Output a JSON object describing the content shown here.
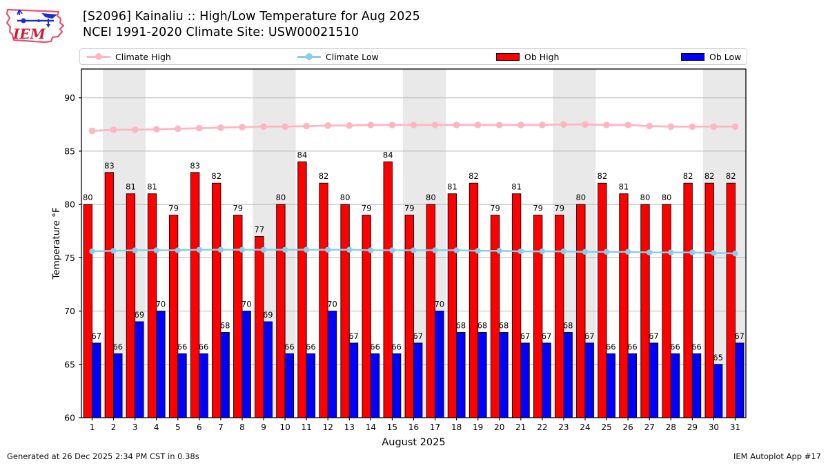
{
  "header": {
    "logo_text": "IEM",
    "title_line1": "[S2096] Kainaliu :: High/Low Temperature for Aug 2025",
    "title_line2": "NCEI 1991-2020 Climate Site: USW00021510"
  },
  "legend": {
    "items": [
      {
        "label": "Climate High",
        "swatch": "line-marker",
        "color": "#ffb6c1"
      },
      {
        "label": "Climate Low",
        "swatch": "line-marker",
        "color": "#87ceeb"
      },
      {
        "label": "Ob High",
        "swatch": "rect",
        "color": "#ff0000"
      },
      {
        "label": "Ob Low",
        "swatch": "rect",
        "color": "#0000ff"
      }
    ]
  },
  "footer": {
    "left": "Generated at 26 Dec 2025 2:34 PM CST in 0.38s",
    "right": "IEM Autoplot App #17"
  },
  "chart_data": {
    "type": "bar",
    "title": "[S2096] Kainaliu :: High/Low Temperature for Aug 2025",
    "subtitle": "NCEI 1991-2020 Climate Site: USW00021510",
    "xlabel": "August 2025",
    "ylabel": "Temperature °F",
    "xlim": [
      0.5,
      31.5
    ],
    "ylim": [
      60,
      92.7
    ],
    "yticks": [
      60,
      65,
      70,
      75,
      80,
      85,
      90
    ],
    "x": [
      1,
      2,
      3,
      4,
      5,
      6,
      7,
      8,
      9,
      10,
      11,
      12,
      13,
      14,
      15,
      16,
      17,
      18,
      19,
      20,
      21,
      22,
      23,
      24,
      25,
      26,
      27,
      28,
      29,
      30,
      31
    ],
    "grid": true,
    "legend_position": "top",
    "bar_value_labels_shown": true,
    "weekend_shading_days": [
      [
        2,
        3
      ],
      [
        9,
        10
      ],
      [
        16,
        17
      ],
      [
        23,
        24
      ],
      [
        30,
        31
      ]
    ],
    "series": [
      {
        "name": "Climate High",
        "type": "line",
        "color": "#ffb6c1",
        "values": [
          86.9,
          87.0,
          87.0,
          87.05,
          87.1,
          87.15,
          87.2,
          87.25,
          87.3,
          87.3,
          87.35,
          87.4,
          87.4,
          87.45,
          87.45,
          87.45,
          87.45,
          87.45,
          87.45,
          87.45,
          87.45,
          87.45,
          87.5,
          87.5,
          87.45,
          87.45,
          87.35,
          87.3,
          87.3,
          87.3,
          87.3
        ]
      },
      {
        "name": "Climate Low",
        "type": "line",
        "color": "#87ceeb",
        "values": [
          75.6,
          75.65,
          75.7,
          75.7,
          75.7,
          75.75,
          75.75,
          75.75,
          75.75,
          75.75,
          75.75,
          75.75,
          75.75,
          75.7,
          75.7,
          75.7,
          75.7,
          75.7,
          75.65,
          75.65,
          75.6,
          75.6,
          75.6,
          75.55,
          75.55,
          75.55,
          75.5,
          75.5,
          75.5,
          75.45,
          75.4
        ]
      },
      {
        "name": "Ob High",
        "type": "bar",
        "color": "#ff0000",
        "values": [
          80,
          83,
          81,
          81,
          79,
          83,
          82,
          79,
          77,
          80,
          84,
          82,
          80,
          79,
          84,
          79,
          80,
          81,
          82,
          79,
          81,
          79,
          79,
          80,
          82,
          81,
          80,
          80,
          82,
          82,
          82
        ]
      },
      {
        "name": "Ob Low",
        "type": "bar",
        "color": "#0000ff",
        "values": [
          67,
          66,
          69,
          70,
          66,
          66,
          68,
          70,
          69,
          66,
          66,
          70,
          67,
          66,
          66,
          67,
          70,
          68,
          68,
          68,
          67,
          67,
          68,
          67,
          66,
          66,
          67,
          66,
          66,
          65,
          67
        ]
      }
    ],
    "band_color": "#e9e9e9",
    "grid_color": "#b5b5b5"
  },
  "layout_hints": {
    "legend_item_offsets": [
      10,
      315,
      603,
      871
    ]
  }
}
